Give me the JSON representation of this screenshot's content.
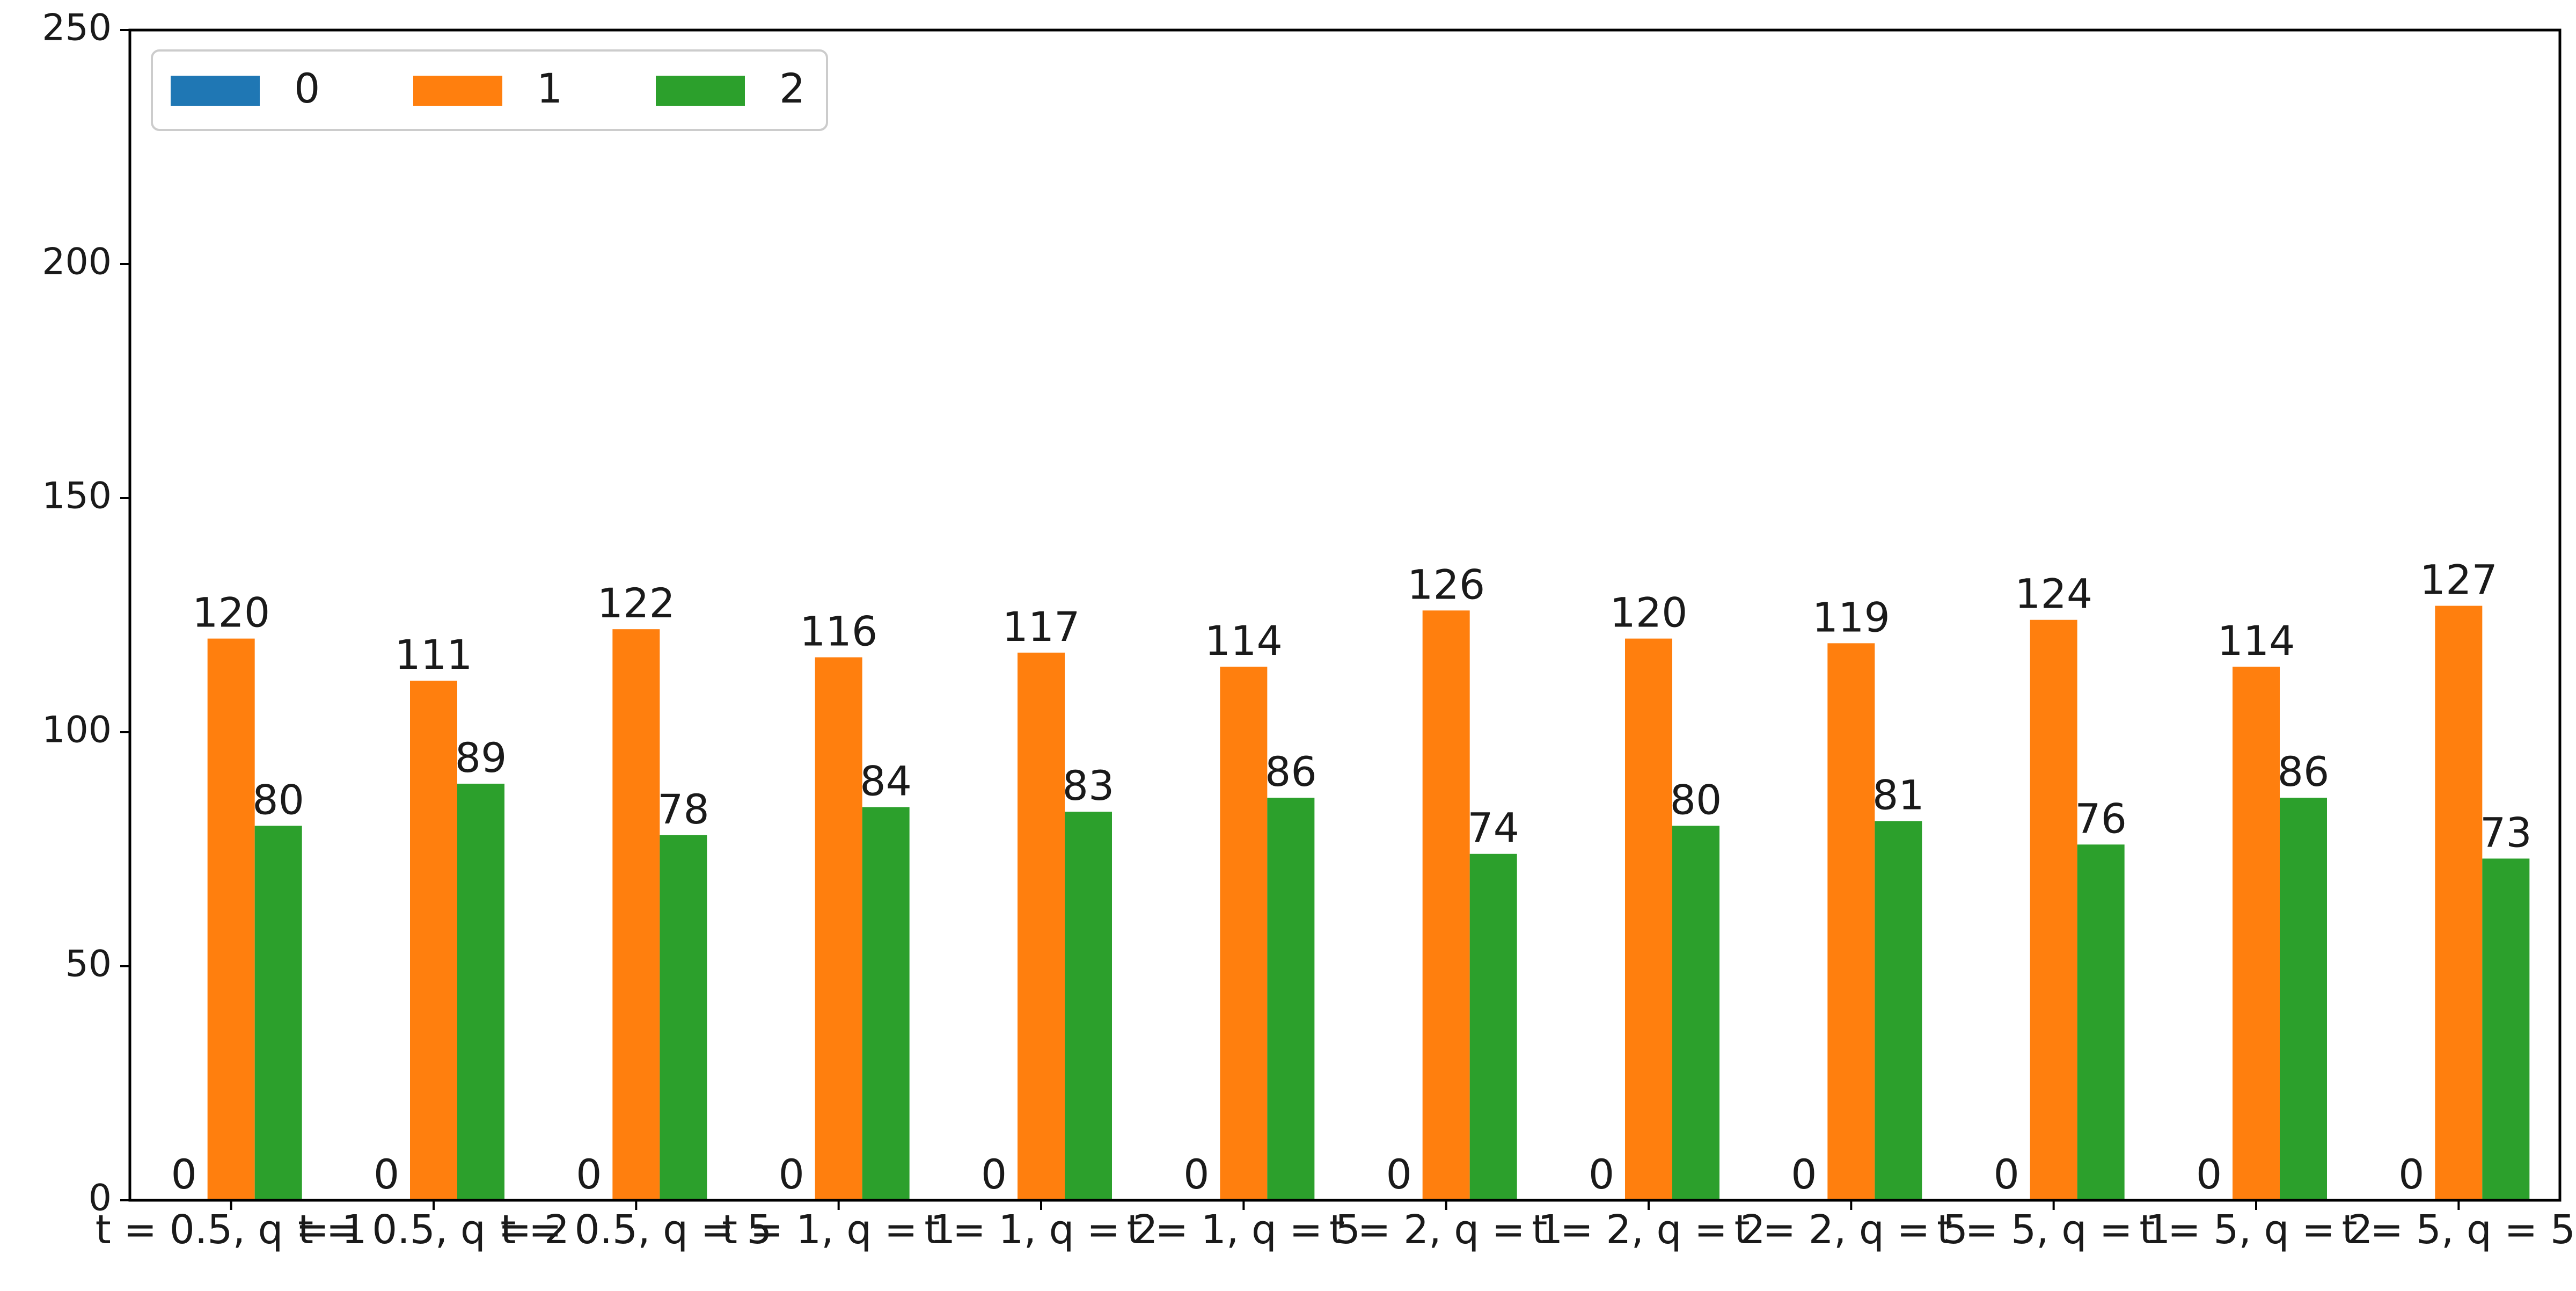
{
  "chart_data": {
    "type": "bar",
    "title": "",
    "xlabel": "",
    "ylabel": "",
    "ylim": [
      0,
      250
    ],
    "yticks": [
      0,
      50,
      100,
      150,
      200,
      250
    ],
    "grid": false,
    "legend_position": "top-left",
    "legend_columns": 3,
    "categories": [
      "t = 0.5, q = 1",
      "t = 0.5, q = 2",
      "t = 0.5, q = 5",
      "t = 1, q = 1",
      "t = 1, q = 2",
      "t = 1, q = 5",
      "t = 2, q = 1",
      "t = 2, q = 2",
      "t = 2, q = 5",
      "t = 5, q = 1",
      "t = 5, q = 2",
      "t = 5, q = 5"
    ],
    "series": [
      {
        "name": "0",
        "color": "#1f77b4",
        "values": [
          0,
          0,
          0,
          0,
          0,
          0,
          0,
          0,
          0,
          0,
          0,
          0
        ]
      },
      {
        "name": "1",
        "color": "#ff7f0e",
        "values": [
          120,
          111,
          122,
          116,
          117,
          114,
          126,
          120,
          119,
          124,
          114,
          127
        ]
      },
      {
        "name": "2",
        "color": "#2ca02c",
        "values": [
          80,
          89,
          78,
          84,
          83,
          86,
          74,
          80,
          81,
          76,
          86,
          73
        ]
      }
    ]
  }
}
